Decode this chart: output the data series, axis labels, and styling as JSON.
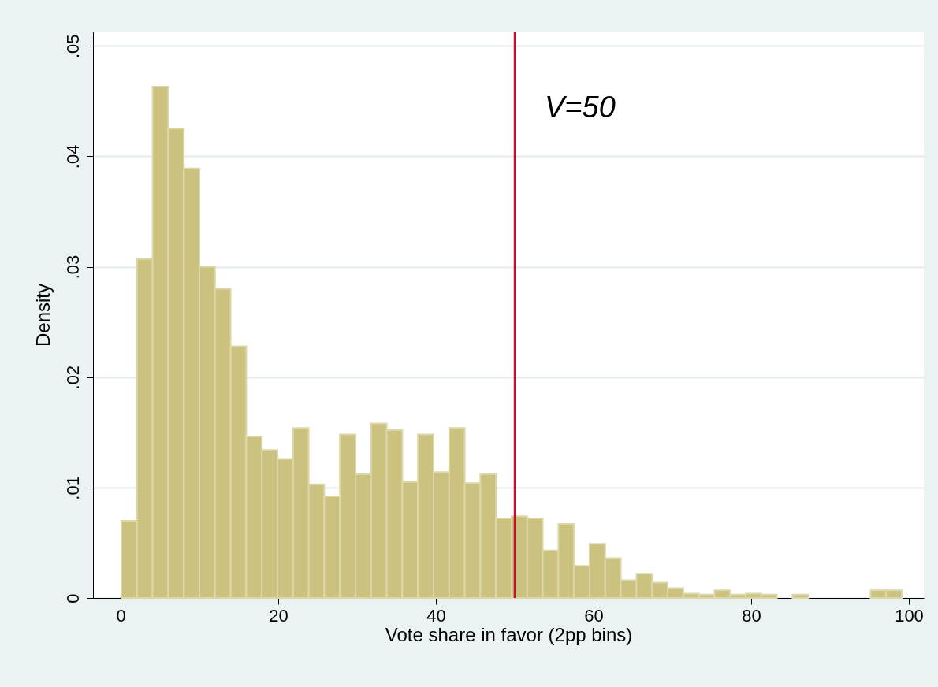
{
  "chart_data": {
    "type": "histogram",
    "xlabel": "Vote share in favor (2pp bins)",
    "ylabel": "Density",
    "bins": [
      0.1,
      2.08,
      4.06,
      6.04,
      8.02,
      10.0,
      11.98,
      13.96,
      15.94,
      17.92,
      19.9,
      21.88,
      23.86,
      25.84,
      27.82,
      29.8,
      31.78,
      33.76,
      35.74,
      37.72,
      39.7,
      41.68,
      43.66,
      45.64,
      47.62,
      49.6,
      51.58,
      53.56,
      55.54,
      57.52,
      59.5,
      61.48,
      63.46,
      65.44,
      67.42,
      69.4,
      71.38,
      73.36,
      75.34,
      77.32,
      79.3,
      81.28,
      83.26,
      85.24,
      87.22,
      89.2,
      91.18,
      93.16,
      95.14,
      97.12,
      99.1
    ],
    "values": [
      0.007,
      0.0307,
      0.0463,
      0.0425,
      0.0389,
      0.03,
      0.028,
      0.0228,
      0.0146,
      0.0134,
      0.0126,
      0.0154,
      0.0103,
      0.0092,
      0.0148,
      0.0112,
      0.0158,
      0.0152,
      0.0105,
      0.0148,
      0.0114,
      0.0154,
      0.0104,
      0.0112,
      0.0072,
      0.0074,
      0.0072,
      0.0043,
      0.0067,
      0.0029,
      0.0049,
      0.0036,
      0.0016,
      0.0022,
      0.0014,
      0.0009,
      0.0004,
      0.0003,
      0.0007,
      0.0003,
      0.0004,
      0.0003,
      0,
      0.0003,
      0,
      0,
      0,
      0,
      0.0007,
      0.0007
    ],
    "color": "#cbc280",
    "xlim": [
      -3.5,
      101.9
    ],
    "xticks": [
      0,
      20,
      40,
      60,
      80,
      100
    ],
    "ylim": [
      0,
      0.0513
    ],
    "yticks": [
      0,
      {
        "value": 0.01,
        "label": ".01"
      },
      {
        "value": 0.02,
        "label": ".02"
      },
      {
        "value": 0.03,
        "label": ".03"
      },
      {
        "value": 0.04,
        "label": ".04"
      },
      {
        "value": 0.05,
        "label": ".05"
      }
    ],
    "grid": "y",
    "ref_lines": [
      {
        "axis": "x",
        "value": 50,
        "label": "V=50",
        "color": "#c8102e"
      }
    ]
  }
}
